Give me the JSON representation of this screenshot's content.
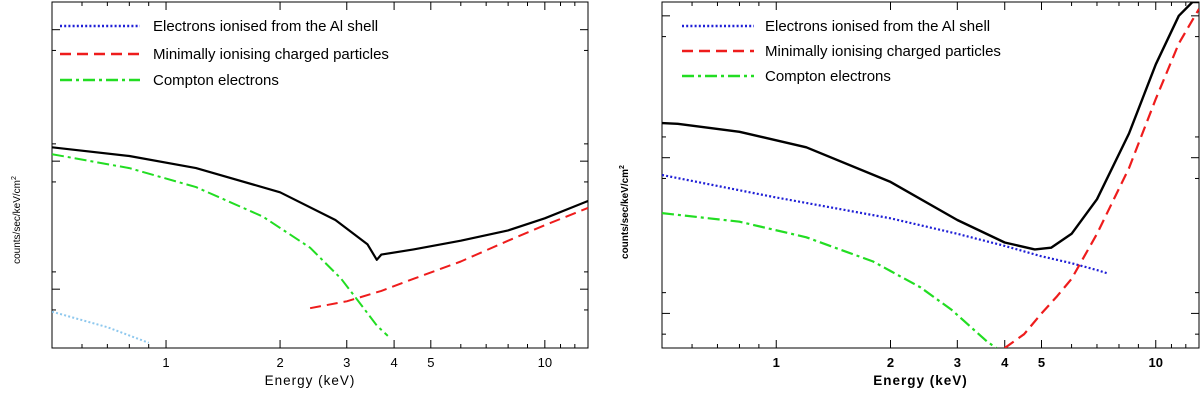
{
  "chart_data": [
    {
      "type": "line",
      "xlabel": "Energy (keV)",
      "ylabel": "counts/sec/keV/cm",
      "ylabel_sup": "2",
      "xscale": "log",
      "xlim": [
        0.5,
        13
      ],
      "xticks": [
        1,
        2,
        3,
        4,
        5,
        10
      ],
      "yticks_unlabeled": true,
      "grid": false,
      "legend_position": "top-left",
      "legend": [
        {
          "label": "Electrons ionised from the Al shell",
          "style": "dotted",
          "color": "#1f1fd6"
        },
        {
          "label": "Minimally ionising charged particles",
          "style": "dashed",
          "color": "#ee1c1c"
        },
        {
          "label": "Compton electrons",
          "style": "dashdot",
          "color": "#22dd22"
        }
      ],
      "series": [
        {
          "role": "total",
          "color": "#000000",
          "style": "solid",
          "x": [
            0.5,
            0.8,
            1.2,
            2.0,
            2.8,
            3.4,
            3.6,
            3.7,
            4.5,
            6.0,
            8.0,
            10.0,
            13.0
          ],
          "y": [
            0.58,
            0.555,
            0.52,
            0.45,
            0.37,
            0.3,
            0.255,
            0.27,
            0.285,
            0.31,
            0.34,
            0.375,
            0.425
          ]
        },
        {
          "role": "electrons_al_shell",
          "color": "#8ec8ee",
          "style": "dotted",
          "x": [
            0.5,
            0.7,
            0.9
          ],
          "y": [
            0.105,
            0.06,
            0.015
          ]
        },
        {
          "role": "minimally_ionising",
          "color": "#ee1c1c",
          "style": "dashed",
          "x": [
            2.4,
            3.0,
            3.7,
            4.5,
            6.0,
            8.0,
            10.0,
            13.0
          ],
          "y": [
            0.115,
            0.135,
            0.165,
            0.2,
            0.25,
            0.31,
            0.355,
            0.405
          ]
        },
        {
          "role": "compton",
          "color": "#22dd22",
          "style": "dashdot",
          "x": [
            0.5,
            0.8,
            1.2,
            1.8,
            2.4,
            2.9,
            3.3,
            3.6,
            3.85
          ],
          "y": [
            0.56,
            0.52,
            0.465,
            0.38,
            0.29,
            0.2,
            0.12,
            0.065,
            0.035
          ]
        }
      ]
    },
    {
      "type": "line",
      "xlabel": "Energy (keV)",
      "ylabel": "counts/sec/keV/cm",
      "ylabel_sup": "2",
      "xscale": "log",
      "xlim": [
        0.5,
        13
      ],
      "xticks": [
        1,
        2,
        3,
        4,
        5,
        10
      ],
      "yticks_unlabeled": true,
      "grid": false,
      "legend_position": "top-left",
      "legend": [
        {
          "label": "Electrons ionised from the Al shell",
          "style": "dotted",
          "color": "#1f1fd6"
        },
        {
          "label": "Minimally ionising charged particles",
          "style": "dashed",
          "color": "#ee1c1c"
        },
        {
          "label": "Compton electrons",
          "style": "dashdot",
          "color": "#22dd22"
        }
      ],
      "series": [
        {
          "role": "total",
          "color": "#000000",
          "style": "solid",
          "x": [
            0.5,
            0.55,
            0.8,
            1.2,
            2.0,
            3.0,
            4.0,
            4.8,
            5.3,
            6.0,
            7.0,
            8.5,
            10.0,
            11.5,
            12.5,
            13.0
          ],
          "y": [
            0.65,
            0.648,
            0.625,
            0.58,
            0.48,
            0.37,
            0.305,
            0.285,
            0.29,
            0.33,
            0.43,
            0.62,
            0.82,
            0.96,
            1.0,
            1.0
          ]
        },
        {
          "role": "electrons_al_shell",
          "color": "#1f1fd6",
          "style": "dotted",
          "x": [
            0.5,
            1.0,
            2.0,
            3.0,
            4.0,
            5.0,
            6.0,
            7.0,
            7.5
          ],
          "y": [
            0.5,
            0.435,
            0.375,
            0.33,
            0.295,
            0.265,
            0.245,
            0.225,
            0.215
          ]
        },
        {
          "role": "minimally_ionising",
          "color": "#ee1c1c",
          "style": "dashed",
          "x": [
            4.0,
            4.5,
            5.0,
            5.5,
            6.0,
            7.0,
            8.5,
            10.0,
            11.5,
            13.0
          ],
          "y": [
            0.0,
            0.04,
            0.1,
            0.15,
            0.2,
            0.33,
            0.52,
            0.72,
            0.88,
            0.98
          ]
        },
        {
          "role": "compton",
          "color": "#22dd22",
          "style": "dashdot",
          "x": [
            0.5,
            0.8,
            1.2,
            1.8,
            2.4,
            2.9,
            3.3,
            3.6,
            3.8
          ],
          "y": [
            0.39,
            0.365,
            0.32,
            0.25,
            0.175,
            0.11,
            0.055,
            0.018,
            0.0
          ]
        }
      ]
    }
  ]
}
